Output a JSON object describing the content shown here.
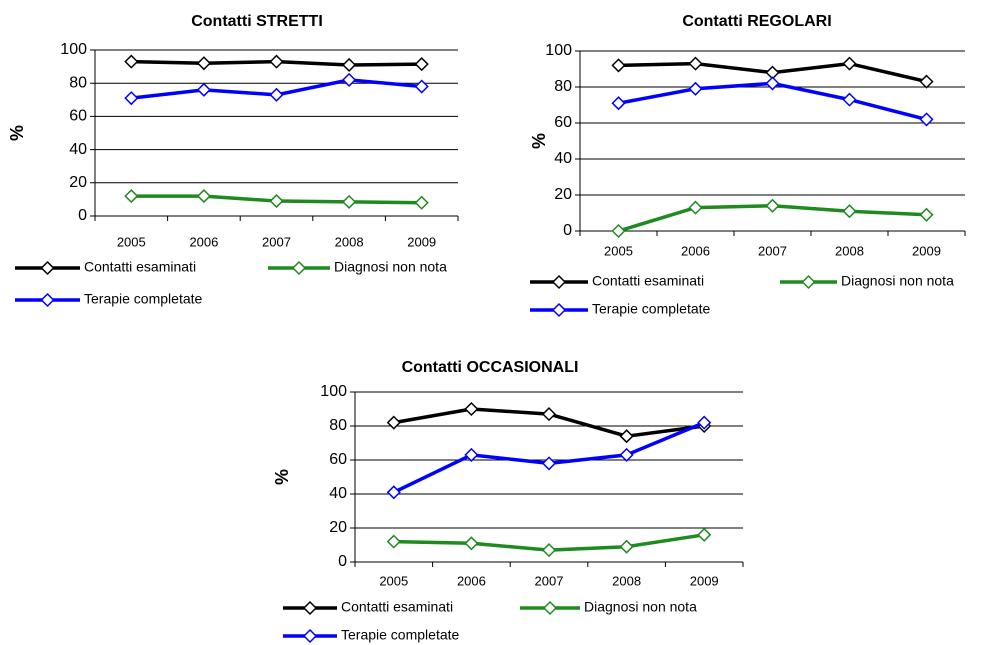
{
  "chart_data": [
    {
      "type": "line",
      "title": "Contatti STRETTI",
      "y_label": "%",
      "categories": [
        "2005",
        "2006",
        "2007",
        "2008",
        "2009"
      ],
      "ylim": [
        0,
        100
      ],
      "yticks": [
        0,
        20,
        40,
        60,
        80,
        100
      ],
      "grid": true,
      "series": [
        {
          "name": "Contatti esaminati",
          "color": "#000000",
          "values": [
            93,
            92,
            93,
            91,
            91.5
          ]
        },
        {
          "name": "Diagnosi non nota",
          "color": "#1f8a1f",
          "values": [
            12,
            12,
            9,
            8.5,
            8
          ]
        },
        {
          "name": "Terapie completate",
          "color": "#0000ff",
          "values": [
            71,
            76,
            73,
            82,
            78
          ]
        }
      ]
    },
    {
      "type": "line",
      "title": "Contatti REGOLARI",
      "y_label": "%",
      "categories": [
        "2005",
        "2006",
        "2007",
        "2008",
        "2009"
      ],
      "ylim": [
        0,
        100
      ],
      "yticks": [
        0,
        20,
        40,
        60,
        80,
        100
      ],
      "grid": true,
      "series": [
        {
          "name": "Contatti esaminati",
          "color": "#000000",
          "values": [
            92,
            93,
            88,
            93,
            83
          ]
        },
        {
          "name": "Diagnosi non nota",
          "color": "#1f8a1f",
          "values": [
            0,
            13,
            14,
            11,
            9
          ]
        },
        {
          "name": "Terapie completate",
          "color": "#0000ff",
          "values": [
            71,
            79,
            82,
            73,
            62
          ]
        }
      ]
    },
    {
      "type": "line",
      "title": "Contatti OCCASIONALI",
      "y_label": "%",
      "categories": [
        "2005",
        "2006",
        "2007",
        "2008",
        "2009"
      ],
      "ylim": [
        0,
        100
      ],
      "yticks": [
        0,
        20,
        40,
        60,
        80,
        100
      ],
      "grid": true,
      "series": [
        {
          "name": "Contatti esaminati",
          "color": "#000000",
          "values": [
            82,
            90,
            87,
            74,
            80
          ]
        },
        {
          "name": "Diagnosi non nota",
          "color": "#1f8a1f",
          "values": [
            12,
            11,
            7,
            9,
            16
          ]
        },
        {
          "name": "Terapie completate",
          "color": "#0000ff",
          "values": [
            41,
            63,
            58,
            63,
            82
          ]
        }
      ]
    }
  ]
}
